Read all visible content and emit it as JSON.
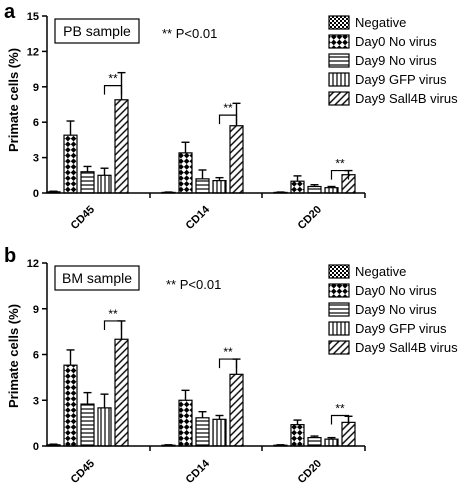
{
  "figure": {
    "panels": [
      {
        "letter": "a",
        "sample_label": "PB sample",
        "pvalue_note": "** P<0.01"
      },
      {
        "letter": "b",
        "sample_label": "BM sample",
        "pvalue_note": "** P<0.01"
      }
    ]
  },
  "colors": {
    "ink": "#000000",
    "background": "#ffffff"
  },
  "chart_data": [
    {
      "type": "bar",
      "title": "",
      "xlabel": "",
      "ylabel": "Primate cells (%)",
      "ylim": [
        0,
        15
      ],
      "yticks": [
        0,
        3,
        6,
        9,
        12,
        15
      ],
      "ytick_labels": [
        "0",
        "3",
        "6",
        "9",
        "12",
        "15"
      ],
      "grid": false,
      "legend_position": "top-right",
      "categories": [
        "CD45",
        "CD14",
        "CD20"
      ],
      "series": [
        {
          "name": "Negative",
          "pattern": "checker",
          "values": [
            0.1,
            0.05,
            0.05
          ],
          "errors": [
            0.05,
            0.03,
            0.03
          ]
        },
        {
          "name": "Day0 No virus",
          "pattern": "big-checker",
          "values": [
            4.9,
            3.4,
            1.0
          ],
          "errors": [
            1.2,
            0.9,
            0.45
          ]
        },
        {
          "name": "Day9 No virus",
          "pattern": "horizontal",
          "values": [
            1.8,
            1.2,
            0.55
          ],
          "errors": [
            0.45,
            0.75,
            0.15
          ]
        },
        {
          "name": "Day9 GFP virus",
          "pattern": "vertical",
          "values": [
            1.5,
            1.05,
            0.45
          ],
          "errors": [
            0.6,
            0.25,
            0.1
          ]
        },
        {
          "name": "Day9 Sall4B virus",
          "pattern": "diagonal",
          "values": [
            7.9,
            5.7,
            1.55
          ],
          "errors": [
            2.3,
            1.9,
            0.35
          ]
        }
      ],
      "significance": [
        {
          "category": "CD45",
          "from_series": 3,
          "to_series": 4,
          "label": "**",
          "level": 9.1
        },
        {
          "category": "CD14",
          "from_series": 3,
          "to_series": 4,
          "label": "**",
          "level": 6.6
        },
        {
          "category": "CD20",
          "from_series": 3,
          "to_series": 4,
          "label": "**",
          "level": 1.9
        }
      ]
    },
    {
      "type": "bar",
      "title": "",
      "xlabel": "",
      "ylabel": "Primate cells (%)",
      "ylim": [
        0,
        12
      ],
      "yticks": [
        0,
        3,
        6,
        9,
        12
      ],
      "ytick_labels": [
        "0",
        "3",
        "6",
        "9",
        "12"
      ],
      "grid": false,
      "legend_position": "top-right",
      "categories": [
        "CD45",
        "CD14",
        "CD20"
      ],
      "series": [
        {
          "name": "Negative",
          "pattern": "checker",
          "values": [
            0.08,
            0.05,
            0.05
          ],
          "errors": [
            0.04,
            0.03,
            0.03
          ]
        },
        {
          "name": "Day0 No virus",
          "pattern": "big-checker",
          "values": [
            5.3,
            3.0,
            1.4
          ],
          "errors": [
            1.0,
            0.65,
            0.3
          ]
        },
        {
          "name": "Day9 No virus",
          "pattern": "horizontal",
          "values": [
            2.75,
            1.85,
            0.55
          ],
          "errors": [
            0.75,
            0.4,
            0.1
          ]
        },
        {
          "name": "Day9 GFP virus",
          "pattern": "vertical",
          "values": [
            2.5,
            1.75,
            0.45
          ],
          "errors": [
            0.9,
            0.25,
            0.1
          ]
        },
        {
          "name": "Day9 Sall4B virus",
          "pattern": "diagonal",
          "values": [
            7.0,
            4.7,
            1.55
          ],
          "errors": [
            1.2,
            1.0,
            0.4
          ]
        }
      ],
      "significance": [
        {
          "category": "CD45",
          "from_series": 3,
          "to_series": 4,
          "label": "**",
          "level": 8.2
        },
        {
          "category": "CD14",
          "from_series": 3,
          "to_series": 4,
          "label": "**",
          "level": 5.7
        },
        {
          "category": "CD20",
          "from_series": 3,
          "to_series": 4,
          "label": "**",
          "level": 2.0
        }
      ]
    }
  ]
}
